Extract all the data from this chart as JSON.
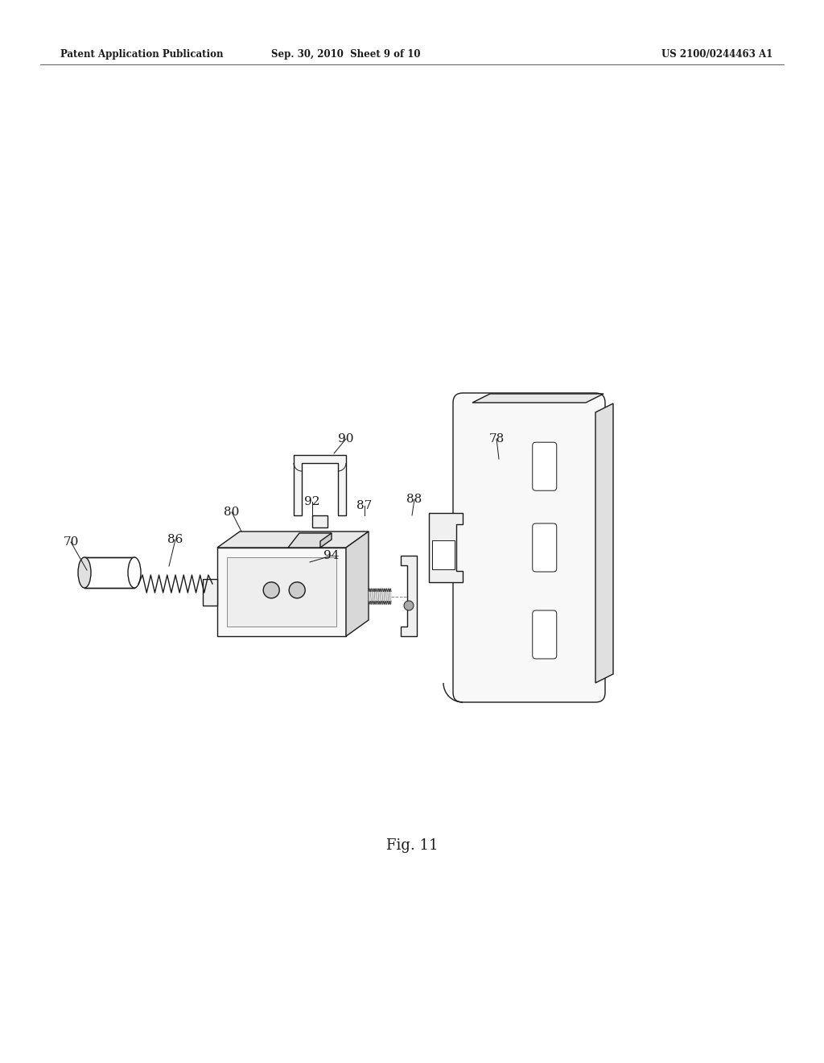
{
  "background_color": "#ffffff",
  "header_left": "Patent Application Publication",
  "header_center": "Sep. 30, 2010  Sheet 9 of 10",
  "header_right": "US 2100/0244463 A1",
  "fig_label": "Fig. 11",
  "page_width": 10.24,
  "page_height": 13.2,
  "dpi": 100
}
